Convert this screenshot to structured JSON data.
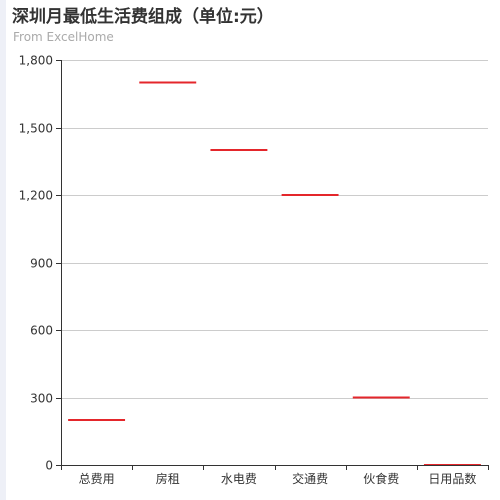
{
  "chart_data": {
    "type": "bar",
    "title": "深圳月最低生活费组成（单位:元）",
    "subtitle": "From ExcelHome",
    "xlabel": "",
    "ylabel": "",
    "categories": [
      "总费用",
      "房租",
      "水电费",
      "交通费",
      "伙食费",
      "日用品数"
    ],
    "values": [
      200,
      1700,
      1400,
      1200,
      300,
      0
    ],
    "ylim": [
      0,
      1800
    ],
    "yticks": [
      0,
      300,
      600,
      900,
      1200,
      1500,
      1800
    ],
    "ytick_labels": [
      "0",
      "300",
      "600",
      "900",
      "1,200",
      "1,500",
      "1,800"
    ],
    "grid": true,
    "legend": "none",
    "colors": {
      "mark": "#e4262b",
      "grid": "#cccccc",
      "axis": "#333333"
    }
  }
}
